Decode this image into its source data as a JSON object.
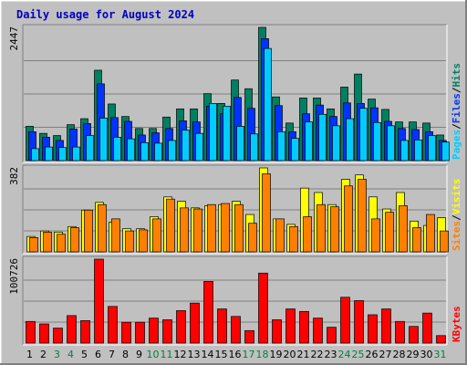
{
  "chart_data": {
    "type": "bar",
    "title": "Daily usage for August 2024",
    "categories": [
      "1",
      "2",
      "3",
      "4",
      "5",
      "6",
      "7",
      "8",
      "9",
      "10",
      "11",
      "12",
      "13",
      "14",
      "15",
      "16",
      "17",
      "18",
      "19",
      "20",
      "21",
      "22",
      "23",
      "24",
      "25",
      "26",
      "27",
      "28",
      "29",
      "30",
      "31"
    ],
    "weekend_days": [
      3,
      4,
      10,
      11,
      17,
      18,
      24,
      25,
      31
    ],
    "weekend_color": "#008040",
    "weekday_color": "#000000",
    "panels": [
      {
        "id": "hits",
        "ymax_label": "2447",
        "ymax": 2447,
        "ylim": [
          0,
          2447
        ],
        "ylabel_parts": [
          "Pages",
          "/",
          "Files",
          "/",
          "Hits"
        ],
        "ylabel_colors": [
          "#00ccff",
          "#000000",
          "#0033ff",
          "#000000",
          "#008060"
        ],
        "series": [
          {
            "name": "Hits",
            "color": "#008060",
            "values": [
              630,
              500,
              460,
              660,
              770,
              1660,
              1040,
              810,
              590,
              590,
              800,
              950,
              950,
              1230,
              1050,
              1480,
              1320,
              2447,
              1170,
              690,
              1150,
              1150,
              950,
              1350,
              1590,
              1130,
              940,
              710,
              710,
              690,
              470
            ]
          },
          {
            "name": "Files",
            "color": "#0033ff",
            "values": [
              530,
              430,
              370,
              580,
              680,
              1410,
              790,
              720,
              470,
              510,
              590,
              730,
              710,
              1000,
              860,
              1160,
              960,
              2240,
              1010,
              530,
              860,
              1020,
              810,
              1060,
              1050,
              970,
              720,
              590,
              570,
              530,
              370
            ]
          },
          {
            "name": "Pages",
            "color": "#00ccff",
            "values": [
              220,
              250,
              240,
              250,
              460,
              780,
              430,
              400,
              330,
              320,
              370,
              560,
              500,
              1050,
              1000,
              630,
              490,
              2060,
              530,
              410,
              710,
              850,
              640,
              770,
              960,
              700,
              640,
              370,
              380,
              460,
              340
            ]
          }
        ]
      },
      {
        "id": "visits",
        "ymax_label": "382",
        "ymax": 382,
        "ylim": [
          0,
          382
        ],
        "ylabel_parts": [
          "Sites",
          "/",
          "Visits"
        ],
        "ylabel_colors": [
          "#ff8000",
          "#000000",
          "#ffff00"
        ],
        "series": [
          {
            "name": "Visits",
            "color": "#ffff00",
            "values": [
              70,
              95,
              90,
              115,
              190,
              225,
              135,
              105,
              105,
              160,
              250,
              230,
              200,
              210,
              215,
              230,
              170,
              382,
              150,
              125,
              290,
              270,
              215,
              330,
              350,
              250,
              195,
              270,
              140,
              120,
              155
            ]
          },
          {
            "name": "Sites",
            "color": "#ff8000",
            "values": [
              65,
              90,
              80,
              110,
              190,
              215,
              150,
              95,
              100,
              150,
              240,
              200,
              195,
              215,
              220,
              215,
              130,
              355,
              150,
              115,
              160,
              215,
              205,
              300,
              330,
              150,
              180,
              210,
              110,
              170,
              95
            ]
          }
        ]
      },
      {
        "id": "kbytes",
        "ymax_label": "100726",
        "ymax": 100726,
        "ylim": [
          0,
          100726
        ],
        "ylabel_parts": [
          "KBytes"
        ],
        "ylabel_colors": [
          "#ff0000"
        ],
        "series": [
          {
            "name": "KBytes",
            "color": "#ff0000",
            "values": [
              26000,
              23000,
              18000,
              33000,
              27000,
              100726,
              44000,
              25000,
              25000,
              30000,
              28000,
              39000,
              48000,
              74000,
              41000,
              32000,
              15000,
              84000,
              28000,
              41000,
              38000,
              30000,
              19000,
              55000,
              51000,
              34000,
              41000,
              26000,
              20000,
              36000,
              9000
            ]
          }
        ]
      }
    ]
  }
}
